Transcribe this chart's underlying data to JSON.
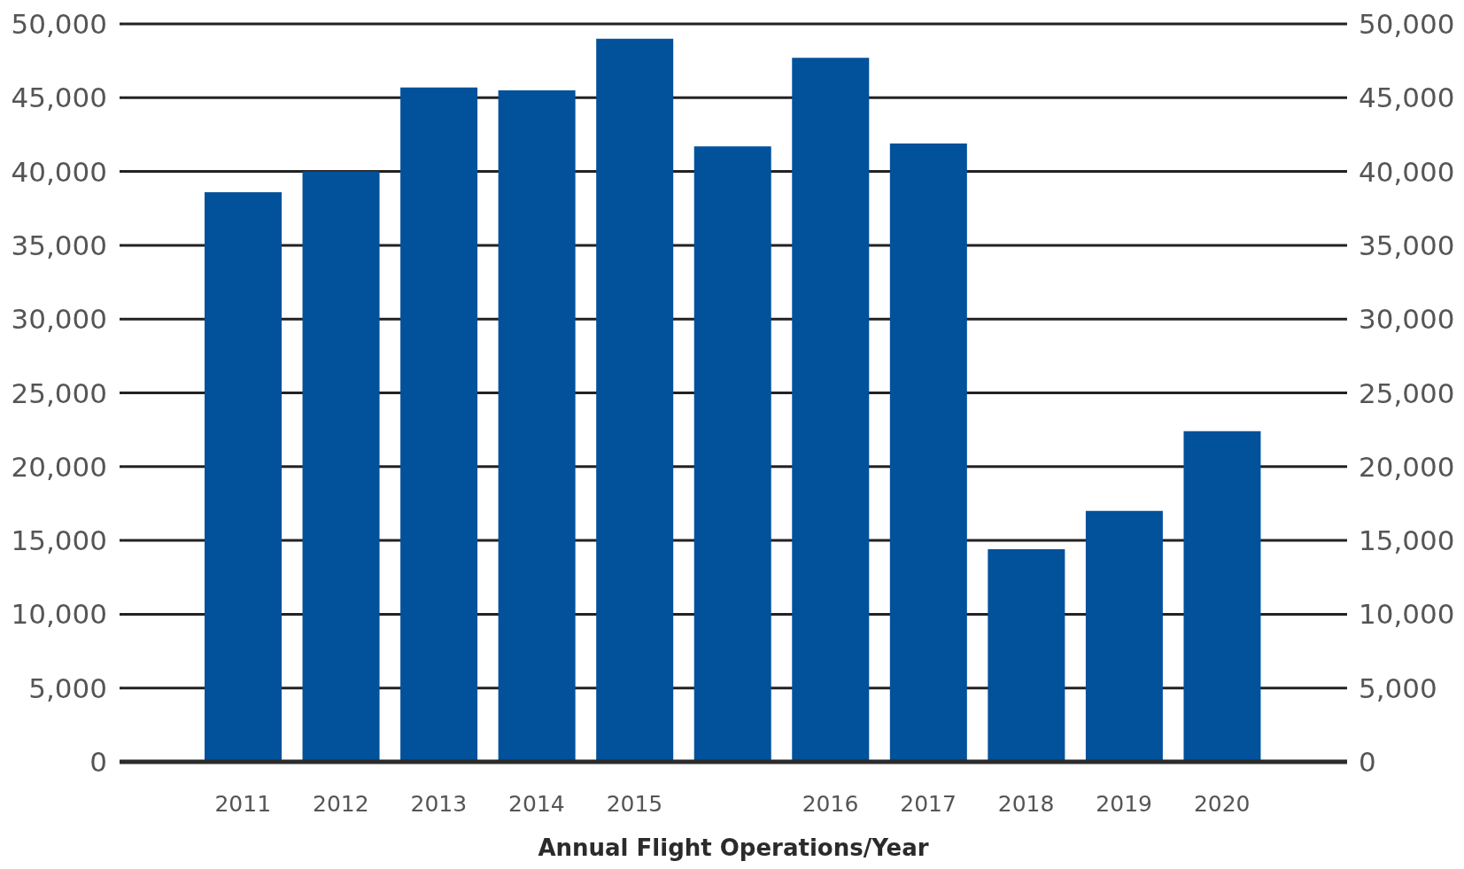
{
  "chart_data": {
    "type": "bar",
    "xlabel": "Annual Flight Operations/Year",
    "categories": [
      "2011",
      "2012",
      "2013",
      "2014",
      "2015",
      null,
      "2016",
      "2017",
      "2018",
      "2019",
      "2020"
    ],
    "values": [
      38600,
      40000,
      45700,
      45500,
      49000,
      41700,
      47700,
      41900,
      14400,
      17000,
      22400
    ],
    "color": "#02519b",
    "ylim": [
      0,
      50000
    ],
    "yticks": [
      0,
      {
        "value": 5000,
        "label": "5,000"
      },
      {
        "value": 10000,
        "label": "10,000"
      },
      {
        "value": 15000,
        "label": "15,000"
      },
      {
        "value": 20000,
        "label": "20,000"
      },
      {
        "value": 25000,
        "label": "25,000"
      },
      {
        "value": 30000,
        "label": "30,000"
      },
      {
        "value": 35000,
        "label": "35,000"
      },
      {
        "value": 40000,
        "label": "40,000"
      },
      {
        "value": 45000,
        "label": "45,000"
      },
      {
        "value": 50000,
        "label": "50,000"
      }
    ],
    "y2lim": [
      0,
      50000
    ],
    "y2ticks": [
      0,
      {
        "value": 5000,
        "label": "5,000"
      },
      {
        "value": 10000,
        "label": "10,000"
      },
      {
        "value": 15000,
        "label": "15,000"
      },
      {
        "value": 20000,
        "label": "20,000"
      },
      {
        "value": 25000,
        "label": "25,000"
      },
      {
        "value": 30000,
        "label": "30,000"
      },
      {
        "value": 35000,
        "label": "35,000"
      },
      {
        "value": 40000,
        "label": "40,000"
      },
      {
        "value": 45000,
        "label": "45,000"
      },
      {
        "value": 50000,
        "label": "50,000"
      }
    ],
    "grid": "y"
  }
}
